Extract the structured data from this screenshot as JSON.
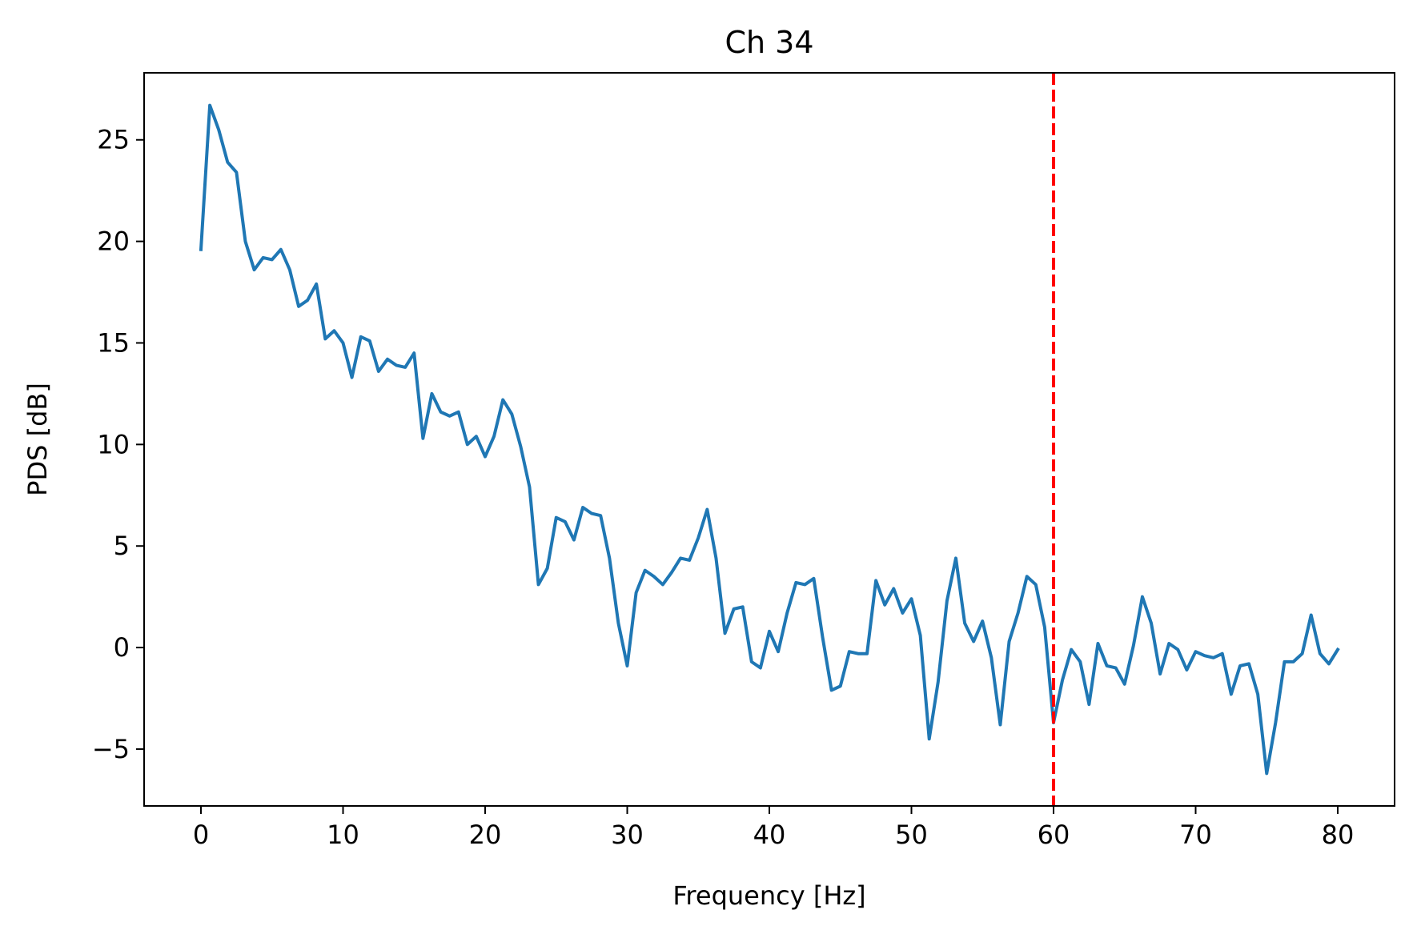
{
  "chart_data": {
    "type": "line",
    "title": "Ch 34",
    "xlabel": "Frequency [Hz]",
    "ylabel": "PDS [dB]",
    "xlim": [
      -4,
      84
    ],
    "ylim": [
      -7.8,
      28.3
    ],
    "xticks": [
      0,
      10,
      20,
      30,
      40,
      50,
      60,
      70,
      80
    ],
    "xtick_labels": [
      "0",
      "10",
      "20",
      "30",
      "40",
      "50",
      "60",
      "70",
      "80"
    ],
    "yticks": [
      -5,
      0,
      5,
      10,
      15,
      20,
      25
    ],
    "ytick_labels": [
      "−5",
      "0",
      "5",
      "10",
      "15",
      "20",
      "25"
    ],
    "grid": false,
    "vline": {
      "x": 60,
      "color": "#ff0000",
      "style": "dashed"
    },
    "series": [
      {
        "color": "#1f77b4",
        "x": [
          0.0,
          0.625,
          1.25,
          1.875,
          2.5,
          3.125,
          3.75,
          4.375,
          5.0,
          5.625,
          6.25,
          6.875,
          7.5,
          8.125,
          8.75,
          9.375,
          10.0,
          10.625,
          11.25,
          11.875,
          12.5,
          13.125,
          13.75,
          14.375,
          15.0,
          15.625,
          16.25,
          16.875,
          17.5,
          18.125,
          18.75,
          19.375,
          20.0,
          20.625,
          21.25,
          21.875,
          22.5,
          23.125,
          23.75,
          24.375,
          25.0,
          25.625,
          26.25,
          26.875,
          27.5,
          28.125,
          28.75,
          29.375,
          30.0,
          30.625,
          31.25,
          31.875,
          32.5,
          33.125,
          33.75,
          34.375,
          35.0,
          35.625,
          36.25,
          36.875,
          37.5,
          38.125,
          38.75,
          39.375,
          40.0,
          40.625,
          41.25,
          41.875,
          42.5,
          43.125,
          43.75,
          44.375,
          45.0,
          45.625,
          46.25,
          46.875,
          47.5,
          48.125,
          48.75,
          49.375,
          50.0,
          50.625,
          51.25,
          51.875,
          52.5,
          53.125,
          53.75,
          54.375,
          55.0,
          55.625,
          56.25,
          56.875,
          57.5,
          58.125,
          58.75,
          59.375,
          60.0,
          60.625,
          61.25,
          61.875,
          62.5,
          63.125,
          63.75,
          64.375,
          65.0,
          65.625,
          66.25,
          66.875,
          67.5,
          68.125,
          68.75,
          69.375,
          70.0,
          70.625,
          71.25,
          71.875,
          72.5,
          73.125,
          73.75,
          74.375,
          75.0,
          75.625,
          76.25,
          76.875,
          77.5,
          78.125,
          78.75,
          79.375,
          80.0
        ],
        "y": [
          19.6,
          26.7,
          25.5,
          23.9,
          23.4,
          20.0,
          18.6,
          19.2,
          19.1,
          19.6,
          18.6,
          16.8,
          17.1,
          17.9,
          15.2,
          15.6,
          15.0,
          13.3,
          15.3,
          15.1,
          13.6,
          14.2,
          13.9,
          13.8,
          14.5,
          10.3,
          12.5,
          11.6,
          11.4,
          11.6,
          10.0,
          10.4,
          9.4,
          10.4,
          12.2,
          11.5,
          9.9,
          7.9,
          3.1,
          3.9,
          6.4,
          6.2,
          5.3,
          6.9,
          6.6,
          6.5,
          4.4,
          1.2,
          -0.9,
          2.7,
          3.8,
          3.5,
          3.1,
          3.7,
          4.4,
          4.3,
          5.4,
          6.8,
          4.4,
          0.7,
          1.9,
          2.0,
          -0.7,
          -1.0,
          0.8,
          -0.2,
          1.7,
          3.2,
          3.1,
          3.4,
          0.5,
          -2.1,
          -1.9,
          -0.2,
          -0.3,
          -0.3,
          3.3,
          2.1,
          2.9,
          1.7,
          2.4,
          0.6,
          -4.5,
          -1.7,
          2.3,
          4.4,
          1.2,
          0.3,
          1.3,
          -0.5,
          -3.8,
          0.3,
          1.7,
          3.5,
          3.1,
          1.0,
          -3.7,
          -1.6,
          -0.1,
          -0.7,
          -2.8,
          0.2,
          -0.9,
          -1.0,
          -1.8,
          0.1,
          2.5,
          1.2,
          -1.3,
          0.2,
          -0.1,
          -1.1,
          -0.2,
          -0.4,
          -0.5,
          -0.3,
          -2.3,
          -0.9,
          -0.8,
          -2.3,
          -6.2,
          -3.7,
          -0.7,
          -0.7,
          -0.3,
          1.6,
          -0.3,
          -0.8,
          -0.1
        ]
      }
    ]
  }
}
